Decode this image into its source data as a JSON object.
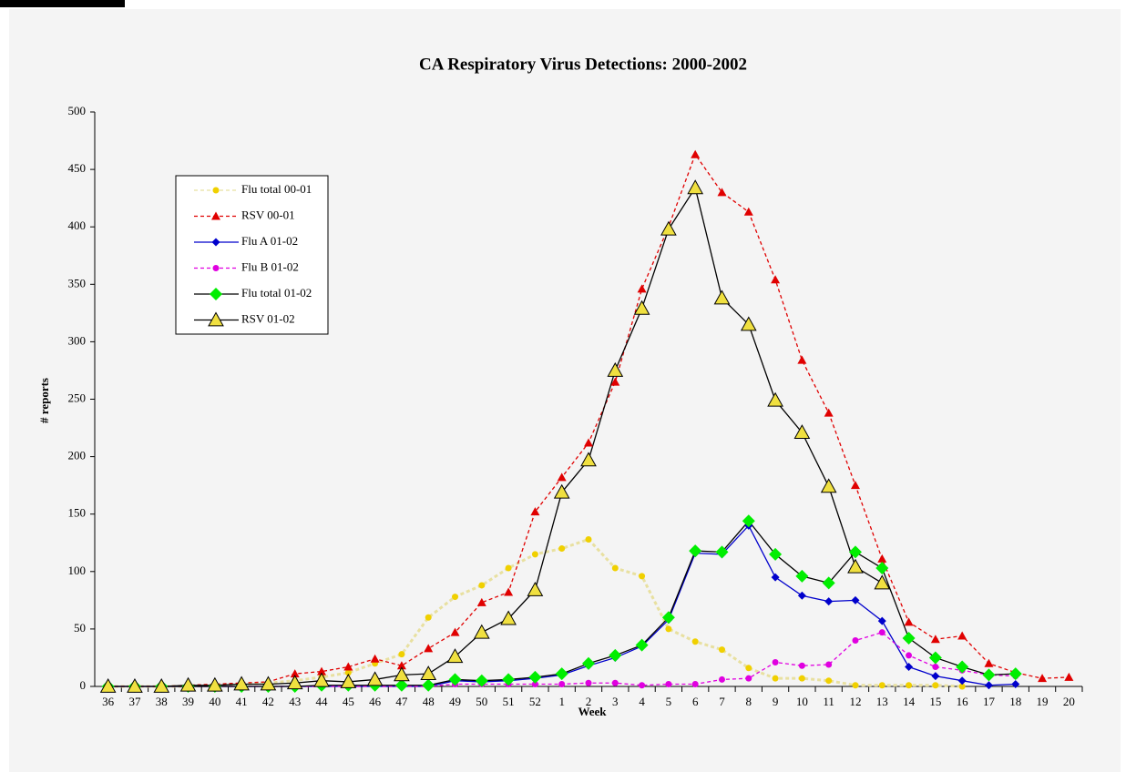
{
  "chart_data": {
    "type": "line",
    "title": "CA Respiratory Virus Detections: 2000-2002",
    "x_label": "Week",
    "y_label": "# reports",
    "categories": [
      "36",
      "37",
      "38",
      "39",
      "40",
      "41",
      "42",
      "43",
      "44",
      "45",
      "46",
      "47",
      "48",
      "49",
      "50",
      "51",
      "52",
      "1",
      "2",
      "3",
      "4",
      "5",
      "6",
      "7",
      "8",
      "9",
      "10",
      "11",
      "12",
      "13",
      "14",
      "15",
      "16",
      "17",
      "18",
      "19",
      "20"
    ],
    "ylim": [
      0,
      500
    ],
    "yticks": [
      0,
      50,
      100,
      150,
      200,
      250,
      300,
      350,
      400,
      450,
      500
    ],
    "grid": false,
    "legend": "upper left",
    "series": [
      {
        "name": "Flu total 00-01",
        "color": "#f0d000",
        "line_color": "#e8e0a0",
        "dash": true,
        "marker": "circle",
        "values": [
          0,
          0,
          0,
          0,
          1,
          2,
          3,
          5,
          8,
          12,
          20,
          28,
          60,
          78,
          88,
          103,
          115,
          120,
          128,
          103,
          96,
          50,
          39,
          32,
          16,
          7,
          7,
          5,
          1,
          1,
          1,
          1,
          0,
          null,
          null,
          null,
          null
        ]
      },
      {
        "name": "RSV 00-01",
        "color": "#e00000",
        "line_color": "#e00000",
        "dash": true,
        "marker": "triangle",
        "values": [
          0,
          0,
          0,
          1,
          2,
          3,
          4,
          11,
          13,
          17,
          24,
          18,
          33,
          47,
          73,
          82,
          152,
          182,
          212,
          265,
          346,
          400,
          463,
          430,
          413,
          354,
          284,
          238,
          175,
          111,
          56,
          41,
          44,
          20,
          12,
          7,
          8
        ]
      },
      {
        "name": "Flu A 01-02",
        "color": "#0000cc",
        "line_color": "#0000cc",
        "dash": false,
        "marker": "diamond",
        "values": [
          0,
          0,
          0,
          0,
          0,
          0,
          0,
          0,
          0,
          0,
          0,
          0,
          0,
          5,
          4,
          5,
          7,
          10,
          18,
          25,
          35,
          58,
          116,
          115,
          140,
          95,
          79,
          74,
          75,
          57,
          17,
          9,
          5,
          1,
          2,
          null,
          null
        ]
      },
      {
        "name": "Flu B 01-02",
        "color": "#e000e0",
        "line_color": "#e000e0",
        "dash": true,
        "marker": "circle",
        "values": [
          0,
          0,
          0,
          0,
          0,
          0,
          0,
          0,
          0,
          0,
          0,
          0,
          0,
          2,
          2,
          2,
          2,
          2,
          3,
          3,
          1,
          2,
          2,
          6,
          7,
          21,
          18,
          19,
          40,
          47,
          27,
          17,
          14,
          10,
          9,
          null,
          null
        ]
      },
      {
        "name": "Flu total 01-02",
        "color": "#00ee00",
        "line_color": "#000000",
        "dash": false,
        "marker": "diamond",
        "values": [
          0,
          0,
          0,
          0,
          0,
          0,
          0,
          0,
          1,
          1,
          1,
          1,
          1,
          6,
          5,
          6,
          8,
          11,
          20,
          27,
          36,
          60,
          118,
          117,
          144,
          115,
          96,
          90,
          117,
          103,
          42,
          25,
          17,
          10,
          11,
          null,
          null
        ]
      },
      {
        "name": "RSV 01-02",
        "color": "#f0e040",
        "line_color": "#000000",
        "dash": false,
        "marker": "triangle-outline",
        "values": [
          0,
          0,
          0,
          1,
          1,
          2,
          2,
          3,
          5,
          4,
          6,
          10,
          11,
          26,
          47,
          59,
          84,
          169,
          197,
          275,
          329,
          398,
          434,
          338,
          315,
          249,
          221,
          174,
          104,
          90,
          null,
          null,
          null,
          null,
          null,
          null,
          null
        ]
      }
    ]
  }
}
